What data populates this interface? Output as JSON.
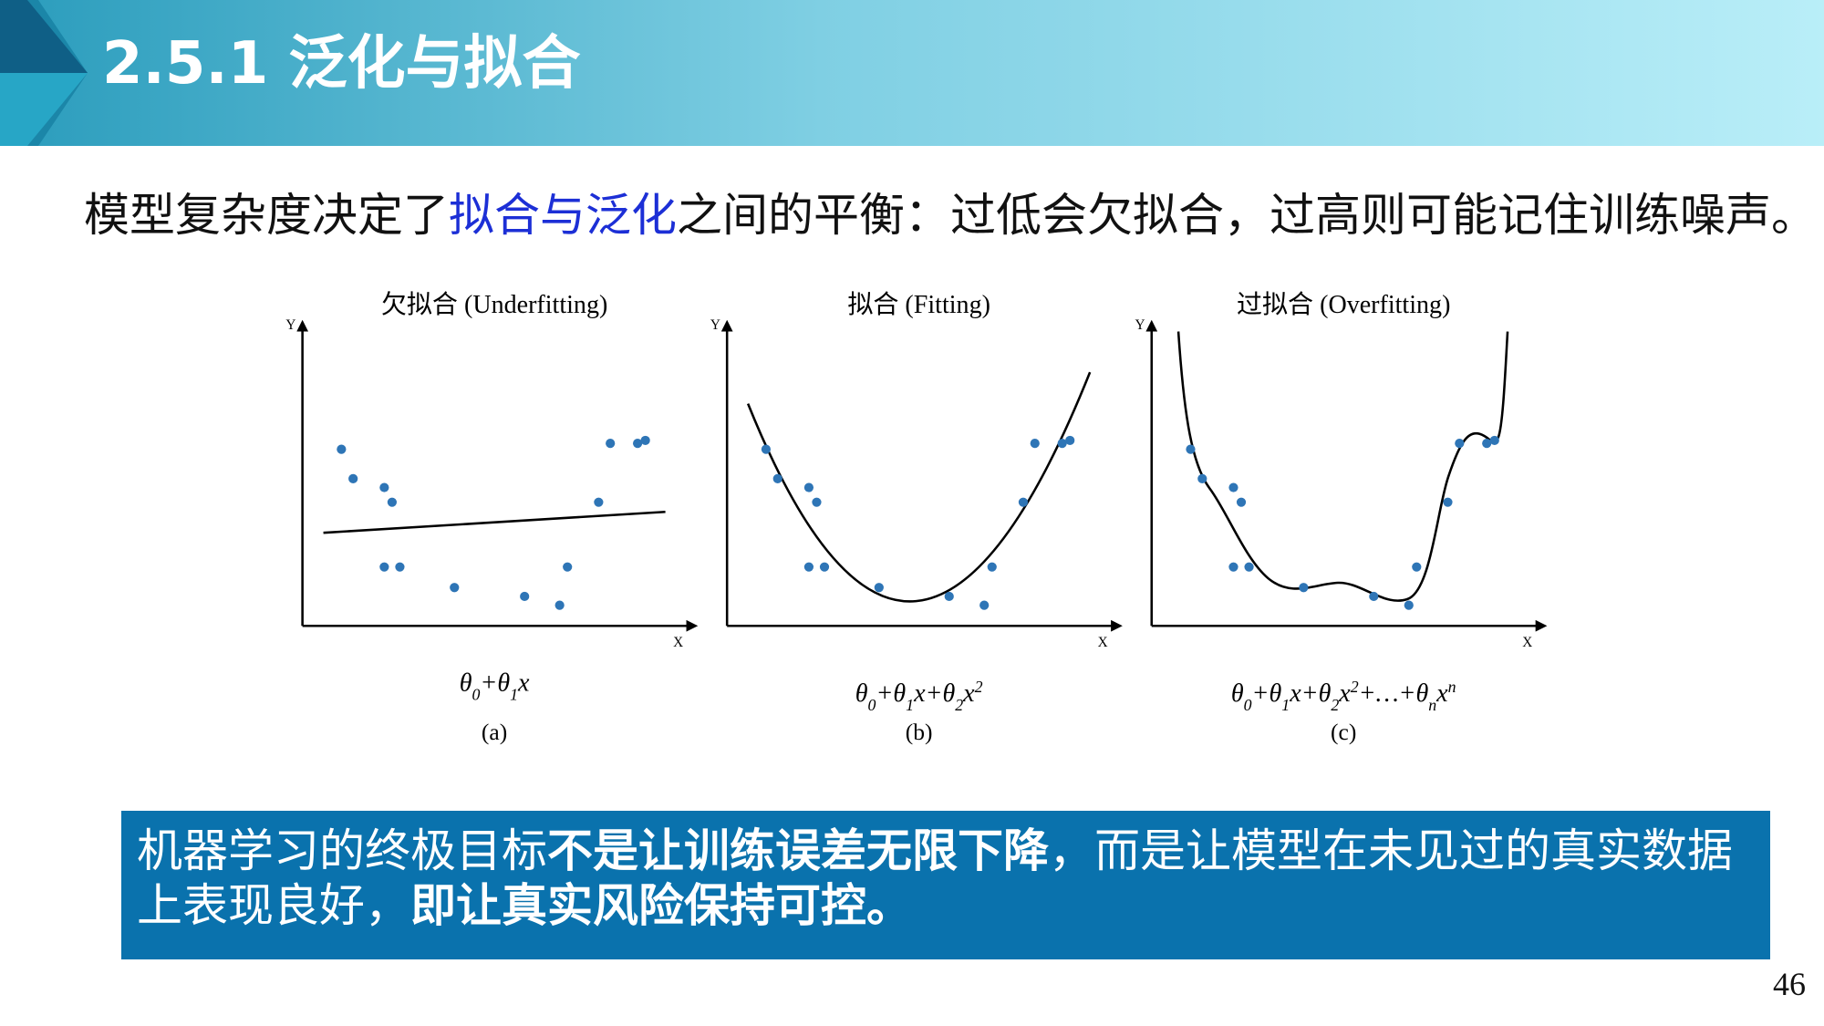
{
  "header": {
    "title": "2.5.1 泛化与拟合"
  },
  "intro": {
    "before": "模型复杂度决定了",
    "highlight": "拟合与泛化",
    "after": "之间的平衡：过低会欠拟合，过高则可能记住训练噪声。"
  },
  "chart_data": [
    {
      "type": "scatter",
      "title": "欠拟合 (Underfitting)",
      "x_label": "X",
      "y_label": "Y",
      "x": [
        1.0,
        1.3,
        2.1,
        2.3,
        2.1,
        2.5,
        3.9,
        5.7,
        6.6,
        6.8,
        7.6,
        7.9,
        8.6,
        8.8
      ],
      "values": [
        6.0,
        5.0,
        4.7,
        4.2,
        2.0,
        2.0,
        1.3,
        1.0,
        0.7,
        2.0,
        4.2,
        6.2,
        6.2,
        6.3
      ],
      "color": "#2e75b6",
      "xlim": [
        0,
        10
      ],
      "ylim": [
        0,
        10
      ],
      "formula": [
        "θ",
        "0",
        "+",
        "θ",
        "1",
        "x"
      ],
      "caption": "(a)"
    },
    {
      "type": "scatter",
      "title": "拟合 (Fitting)",
      "x_label": "X",
      "y_label": "Y",
      "x": [
        1.0,
        1.3,
        2.1,
        2.3,
        2.1,
        2.5,
        3.9,
        5.7,
        6.6,
        6.8,
        7.6,
        7.9,
        8.6,
        8.8
      ],
      "values": [
        6.0,
        5.0,
        4.7,
        4.2,
        2.0,
        2.0,
        1.3,
        1.0,
        0.7,
        2.0,
        4.2,
        6.2,
        6.2,
        6.3
      ],
      "color": "#2e75b6",
      "xlim": [
        0,
        10
      ],
      "ylim": [
        0,
        10
      ],
      "formula": [
        "θ",
        "0",
        "+",
        "θ",
        "1",
        "x",
        "+",
        "θ",
        "2",
        "x",
        "2"
      ],
      "caption": "(b)"
    },
    {
      "type": "scatter",
      "title": "过拟合 (Overfitting)",
      "x_label": "X",
      "y_label": "Y",
      "x": [
        1.0,
        1.3,
        2.1,
        2.3,
        2.1,
        2.5,
        3.9,
        5.7,
        6.6,
        6.8,
        7.6,
        7.9,
        8.6,
        8.8
      ],
      "values": [
        6.0,
        5.0,
        4.7,
        4.2,
        2.0,
        2.0,
        1.3,
        1.0,
        0.7,
        2.0,
        4.2,
        6.2,
        6.2,
        6.3
      ],
      "color": "#2e75b6",
      "xlim": [
        0,
        10
      ],
      "ylim": [
        0,
        10
      ],
      "formula": [
        "θ",
        "0",
        "+",
        "θ",
        "1",
        "x",
        "+",
        "θ",
        "2",
        "x",
        "2",
        "+…+",
        "θ",
        "n",
        "x",
        "n"
      ],
      "caption": "(c)"
    }
  ],
  "callout": {
    "segments": [
      "机器学习的终极目标",
      "不是让训练误差无限下降",
      "，而是让模型在未见过的真实数据上表现良好，",
      "即让真实风险保持可控。"
    ]
  },
  "page_number": "46"
}
